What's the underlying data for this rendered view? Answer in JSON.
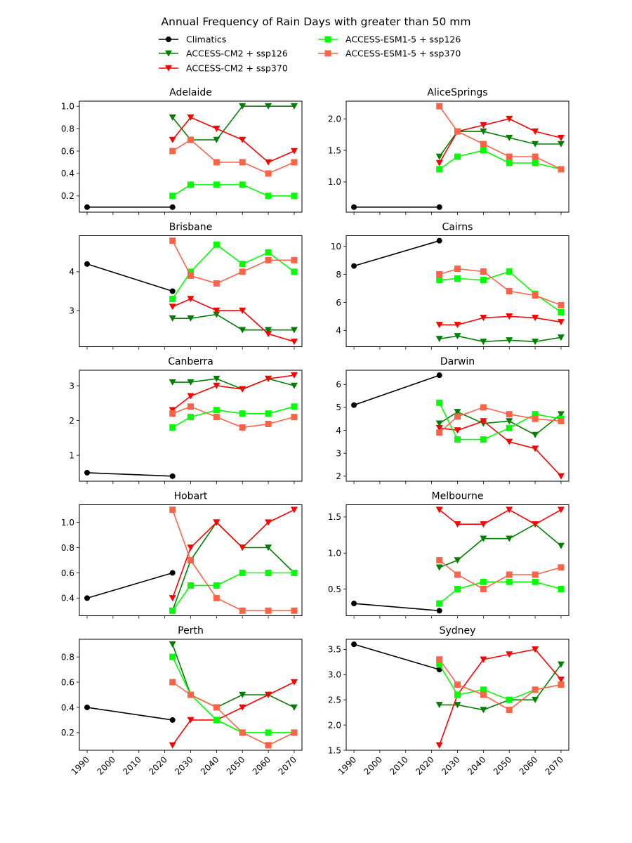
{
  "chart_data": {
    "type": "line",
    "title": "Annual Frequency of Rain Days with greater than 50 mm",
    "xlabel": "",
    "ylabel": "",
    "x_ticks": [
      1990,
      2000,
      2010,
      2020,
      2030,
      2040,
      2050,
      2060,
      2070
    ],
    "xlim": [
      1987,
      2073
    ],
    "legend_position": "top-center",
    "legend": [
      {
        "name": "Climatics",
        "color": "#000000",
        "marker": "circle"
      },
      {
        "name": "ACCESS-CM2 + ssp126",
        "color": "#008000",
        "marker": "triangle-down"
      },
      {
        "name": "ACCESS-CM2 + ssp370",
        "color": "#ff0000",
        "marker": "triangle-down"
      },
      {
        "name": "ACCESS-ESM1-5 + ssp126",
        "color": "#00ff00",
        "marker": "square"
      },
      {
        "name": "ACCESS-ESM1-5 + ssp370",
        "color": "#ff6347",
        "marker": "square"
      }
    ],
    "climatics_x": [
      1990,
      2023
    ],
    "model_x": [
      2023,
      2030,
      2040,
      2050,
      2060,
      2070
    ],
    "panels": [
      {
        "name": "Adelaide",
        "y_ticks": [
          0.2,
          0.4,
          0.6,
          0.8,
          1.0
        ],
        "y_tick_labels": [
          "0.2",
          "0.4",
          "0.6",
          "0.8",
          "1.0"
        ],
        "series": {
          "Climatics": [
            0.1,
            0.1
          ],
          "ACCESS-CM2 + ssp126": [
            0.9,
            0.7,
            0.7,
            1.0,
            1.0,
            1.0
          ],
          "ACCESS-CM2 + ssp370": [
            0.7,
            0.9,
            0.8,
            0.7,
            0.5,
            0.6
          ],
          "ACCESS-ESM1-5 + ssp126": [
            0.2,
            0.3,
            0.3,
            0.3,
            0.2,
            0.2
          ],
          "ACCESS-ESM1-5 + ssp370": [
            0.6,
            0.7,
            0.5,
            0.5,
            0.4,
            0.5
          ]
        }
      },
      {
        "name": "AliceSprings",
        "y_ticks": [
          1.0,
          1.5,
          2.0
        ],
        "y_tick_labels": [
          "1.0",
          "1.5",
          "2.0"
        ],
        "series": {
          "Climatics": [
            0.6,
            0.6
          ],
          "ACCESS-CM2 + ssp126": [
            1.4,
            1.8,
            1.8,
            1.7,
            1.6,
            1.6
          ],
          "ACCESS-CM2 + ssp370": [
            1.3,
            1.8,
            1.9,
            2.0,
            1.8,
            1.7
          ],
          "ACCESS-ESM1-5 + ssp126": [
            1.2,
            1.4,
            1.5,
            1.3,
            1.3,
            1.2
          ],
          "ACCESS-ESM1-5 + ssp370": [
            2.2,
            1.8,
            1.6,
            1.4,
            1.4,
            1.2
          ]
        }
      },
      {
        "name": "Brisbane",
        "y_ticks": [
          3,
          4
        ],
        "y_tick_labels": [
          "3",
          "4"
        ],
        "series": {
          "Climatics": [
            4.2,
            3.5
          ],
          "ACCESS-CM2 + ssp126": [
            2.8,
            2.8,
            2.9,
            2.5,
            2.5,
            2.5
          ],
          "ACCESS-CM2 + ssp370": [
            3.1,
            3.3,
            3.0,
            3.0,
            2.4,
            2.2
          ],
          "ACCESS-ESM1-5 + ssp126": [
            3.3,
            4.0,
            4.7,
            4.2,
            4.5,
            4.0
          ],
          "ACCESS-ESM1-5 + ssp370": [
            4.8,
            3.9,
            3.7,
            4.0,
            4.3,
            4.3
          ]
        }
      },
      {
        "name": "Cairns",
        "y_ticks": [
          4,
          6,
          8,
          10
        ],
        "y_tick_labels": [
          "4",
          "6",
          "8",
          "10"
        ],
        "series": {
          "Climatics": [
            8.6,
            10.4
          ],
          "ACCESS-CM2 + ssp126": [
            3.4,
            3.6,
            3.2,
            3.3,
            3.2,
            3.5
          ],
          "ACCESS-CM2 + ssp370": [
            4.4,
            4.4,
            4.9,
            5.0,
            4.9,
            4.6
          ],
          "ACCESS-ESM1-5 + ssp126": [
            7.6,
            7.7,
            7.6,
            8.2,
            6.6,
            5.3
          ],
          "ACCESS-ESM1-5 + ssp370": [
            8.0,
            8.4,
            8.2,
            6.8,
            6.5,
            5.8
          ]
        }
      },
      {
        "name": "Canberra",
        "y_ticks": [
          1,
          2,
          3
        ],
        "y_tick_labels": [
          "1",
          "2",
          "3"
        ],
        "series": {
          "Climatics": [
            0.5,
            0.4
          ],
          "ACCESS-CM2 + ssp126": [
            3.1,
            3.1,
            3.2,
            2.9,
            3.2,
            3.0
          ],
          "ACCESS-CM2 + ssp370": [
            2.3,
            2.7,
            3.0,
            2.9,
            3.2,
            3.3
          ],
          "ACCESS-ESM1-5 + ssp126": [
            1.8,
            2.1,
            2.3,
            2.2,
            2.2,
            2.4
          ],
          "ACCESS-ESM1-5 + ssp370": [
            2.2,
            2.4,
            2.1,
            1.8,
            1.9,
            2.1
          ]
        }
      },
      {
        "name": "Darwin",
        "y_ticks": [
          2,
          3,
          4,
          5,
          6
        ],
        "y_tick_labels": [
          "2",
          "3",
          "4",
          "5",
          "6"
        ],
        "series": {
          "Climatics": [
            5.1,
            6.4
          ],
          "ACCESS-CM2 + ssp126": [
            4.3,
            4.8,
            4.3,
            4.4,
            3.8,
            4.7
          ],
          "ACCESS-CM2 + ssp370": [
            4.1,
            4.0,
            4.4,
            3.5,
            3.2,
            2.0
          ],
          "ACCESS-ESM1-5 + ssp126": [
            5.2,
            3.6,
            3.6,
            4.1,
            4.7,
            4.5
          ],
          "ACCESS-ESM1-5 + ssp370": [
            3.9,
            4.6,
            5.0,
            4.7,
            4.5,
            4.4
          ]
        }
      },
      {
        "name": "Hobart",
        "y_ticks": [
          0.4,
          0.6,
          0.8,
          1.0
        ],
        "y_tick_labels": [
          "0.4",
          "0.6",
          "0.8",
          "1.0"
        ],
        "series": {
          "Climatics": [
            0.4,
            0.6
          ],
          "ACCESS-CM2 + ssp126": [
            0.3,
            0.7,
            1.0,
            0.8,
            0.8,
            0.6
          ],
          "ACCESS-CM2 + ssp370": [
            0.4,
            0.8,
            1.0,
            0.8,
            1.0,
            1.1
          ],
          "ACCESS-ESM1-5 + ssp126": [
            0.3,
            0.5,
            0.5,
            0.6,
            0.6,
            0.6
          ],
          "ACCESS-ESM1-5 + ssp370": [
            1.1,
            0.7,
            0.4,
            0.3,
            0.3,
            0.3
          ]
        }
      },
      {
        "name": "Melbourne",
        "y_ticks": [
          0.5,
          1.0,
          1.5
        ],
        "y_tick_labels": [
          "0.5",
          "1.0",
          "1.5"
        ],
        "series": {
          "Climatics": [
            0.3,
            0.2
          ],
          "ACCESS-CM2 + ssp126": [
            0.8,
            0.9,
            1.2,
            1.2,
            1.4,
            1.1
          ],
          "ACCESS-CM2 + ssp370": [
            1.6,
            1.4,
            1.4,
            1.6,
            1.4,
            1.6
          ],
          "ACCESS-ESM1-5 + ssp126": [
            0.3,
            0.5,
            0.6,
            0.6,
            0.6,
            0.5
          ],
          "ACCESS-ESM1-5 + ssp370": [
            0.9,
            0.7,
            0.5,
            0.7,
            0.7,
            0.8
          ]
        }
      },
      {
        "name": "Perth",
        "y_ticks": [
          0.2,
          0.4,
          0.6,
          0.8
        ],
        "y_tick_labels": [
          "0.2",
          "0.4",
          "0.6",
          "0.8"
        ],
        "series": {
          "Climatics": [
            0.4,
            0.3
          ],
          "ACCESS-CM2 + ssp126": [
            0.9,
            0.5,
            0.4,
            0.5,
            0.5,
            0.4
          ],
          "ACCESS-CM2 + ssp370": [
            0.1,
            0.3,
            0.3,
            0.4,
            0.5,
            0.6
          ],
          "ACCESS-ESM1-5 + ssp126": [
            0.8,
            0.5,
            0.3,
            0.2,
            0.2,
            0.2
          ],
          "ACCESS-ESM1-5 + ssp370": [
            0.6,
            0.5,
            0.4,
            0.2,
            0.1,
            0.2
          ]
        }
      },
      {
        "name": "Sydney",
        "y_ticks": [
          1.5,
          2.0,
          2.5,
          3.0,
          3.5
        ],
        "y_tick_labels": [
          "1.5",
          "2.0",
          "2.5",
          "3.0",
          "3.5"
        ],
        "series": {
          "Climatics": [
            3.6,
            3.1
          ],
          "ACCESS-CM2 + ssp126": [
            2.4,
            2.4,
            2.3,
            2.5,
            2.5,
            3.2
          ],
          "ACCESS-CM2 + ssp370": [
            1.6,
            2.6,
            3.3,
            3.4,
            3.5,
            2.9
          ],
          "ACCESS-ESM1-5 + ssp126": [
            3.2,
            2.6,
            2.7,
            2.5,
            2.7,
            2.8
          ],
          "ACCESS-ESM1-5 + ssp370": [
            3.3,
            2.8,
            2.6,
            2.3,
            2.7,
            2.8
          ]
        }
      }
    ]
  }
}
